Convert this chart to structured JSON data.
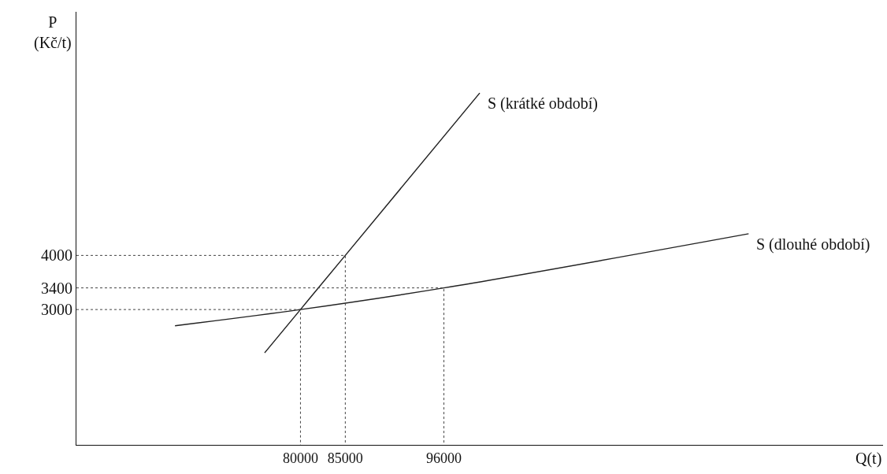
{
  "chart_data": {
    "type": "line",
    "xlabel": "Q(t)",
    "ylabel": "P\n(Kč/t)",
    "xlim": [
      55000,
      145000
    ],
    "ylim": [
      500,
      8500
    ],
    "xticks": [
      80000,
      85000,
      96000
    ],
    "yticks": [
      3000,
      3400,
      4000
    ],
    "legend": false,
    "marker": "none",
    "series": [
      {
        "name": "S (krátké období)",
        "color": "#222222",
        "line_style": "solid",
        "x": [
          76000,
          80000,
          85000,
          100000
        ],
        "values": [
          2200,
          3000,
          4000,
          7000
        ]
      },
      {
        "name": "S (dlouhé období)",
        "color": "#222222",
        "line_style": "solid",
        "x": [
          66000,
          80000,
          96000,
          130000
        ],
        "values": [
          2700,
          3000,
          3400,
          4400
        ]
      },
      {
        "color": "#444444",
        "line_style": "dotted",
        "x": [
          55000,
          80000,
          80000
        ],
        "values": [
          3000,
          3000,
          500
        ]
      },
      {
        "color": "#444444",
        "line_style": "dotted",
        "x": [
          55000,
          85000,
          85000
        ],
        "values": [
          4000,
          4000,
          500
        ]
      },
      {
        "color": "#444444",
        "line_style": "dotted",
        "x": [
          55000,
          96000,
          96000
        ],
        "values": [
          3400,
          3400,
          500
        ]
      }
    ]
  }
}
